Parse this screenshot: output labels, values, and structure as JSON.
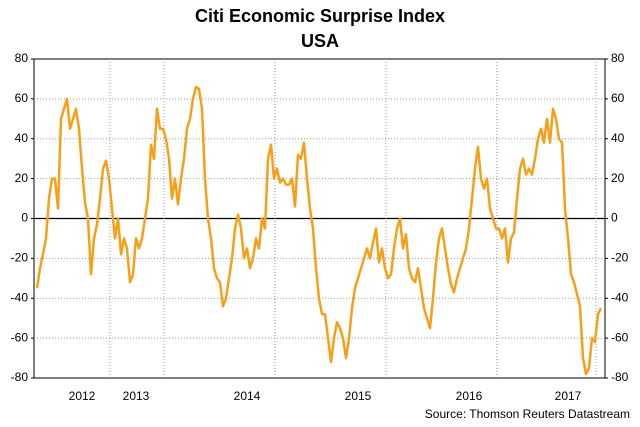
{
  "chart_data": {
    "type": "line",
    "title": "Citi Economic Surprise Index",
    "subtitle": "USA",
    "source": "Source: Thomson Reuters Datastream",
    "color": "#f6a01a",
    "grid": true,
    "ylim": [
      -80,
      80
    ],
    "yticks": [
      -80,
      -60,
      -40,
      -20,
      0,
      20,
      40,
      60,
      80
    ],
    "y2lim": [
      -80,
      80
    ],
    "y2ticks": [
      -80,
      -60,
      -40,
      -20,
      0,
      20,
      40,
      60,
      80
    ],
    "categories": [
      null,
      null,
      null,
      null,
      null,
      null,
      null,
      null,
      null,
      null,
      null,
      null,
      null,
      null,
      null,
      "2012",
      null,
      null,
      null,
      null,
      null,
      null,
      null,
      null,
      null,
      null,
      null,
      null,
      null,
      null,
      null,
      null,
      null,
      "2013",
      null,
      null,
      null,
      null,
      null,
      null,
      null,
      null,
      null,
      null,
      null,
      null,
      null,
      null,
      null,
      null,
      null,
      null,
      null,
      null,
      null,
      null,
      null,
      null,
      null,
      null,
      null,
      null,
      null,
      null,
      null,
      null,
      null,
      null,
      null,
      null,
      "2014",
      null,
      null,
      null,
      null,
      null,
      null,
      null,
      null,
      null,
      null,
      null,
      null,
      null,
      null,
      null,
      null,
      null,
      null,
      null,
      null,
      null,
      null,
      null,
      null,
      null,
      null,
      null,
      null,
      null,
      null,
      null,
      null,
      null,
      null,
      null,
      null,
      "2015",
      null,
      null,
      null,
      null,
      null,
      null,
      null,
      null,
      null,
      null,
      null,
      null,
      null,
      null,
      null,
      null,
      null,
      null,
      null,
      null,
      null,
      null,
      null,
      null,
      null,
      null,
      null,
      null,
      null,
      null,
      null,
      null,
      null,
      null,
      null,
      null,
      "2016",
      null,
      null,
      null,
      null,
      null,
      null,
      null,
      null,
      null,
      null,
      null,
      null,
      null,
      null,
      null,
      null,
      null,
      null,
      null,
      null,
      null,
      null,
      null,
      null,
      null,
      null,
      null,
      null,
      null,
      null,
      null,
      null,
      "2017",
      null,
      null,
      null,
      null,
      null,
      null,
      null,
      null,
      null,
      null,
      null
    ],
    "values": [
      -35,
      -25,
      -18,
      -10,
      10,
      20,
      20,
      5,
      50,
      55,
      60,
      45,
      50,
      55,
      45,
      25,
      8,
      0,
      -28,
      -10,
      -3,
      10,
      25,
      29,
      20,
      5,
      -10,
      0,
      -18,
      -10,
      -15,
      -32,
      -28,
      -10,
      -15,
      -10,
      0,
      10,
      37,
      30,
      55,
      45,
      45,
      40,
      30,
      10,
      20,
      7,
      20,
      30,
      45,
      50,
      60,
      66,
      65,
      55,
      20,
      0,
      -10,
      -25,
      -30,
      -32,
      -44,
      -40,
      -30,
      -20,
      -5,
      2,
      -5,
      -20,
      -15,
      -25,
      -20,
      -10,
      -15,
      0,
      -5,
      30,
      37,
      20,
      25,
      18,
      20,
      17,
      17,
      20,
      6,
      32,
      30,
      38,
      20,
      5,
      -5,
      -25,
      -40,
      -48,
      -48,
      -60,
      -72,
      -60,
      -52,
      -55,
      -60,
      -70,
      -60,
      -45,
      -35,
      -30,
      -25,
      -20,
      -15,
      -20,
      -12,
      -5,
      -22,
      -15,
      -25,
      -30,
      -28,
      -15,
      -5,
      0,
      -15,
      -8,
      -25,
      -30,
      -32,
      -25,
      -35,
      -45,
      -50,
      -55,
      -40,
      -22,
      -10,
      -5,
      -15,
      -25,
      -33,
      -37,
      -30,
      -25,
      -20,
      -15,
      -5,
      10,
      25,
      36,
      20,
      15,
      20,
      5,
      0,
      -5,
      -5,
      -10,
      -5,
      -22,
      -10,
      -7,
      10,
      25,
      30,
      22,
      25,
      22,
      30,
      40,
      45,
      38,
      50,
      38,
      55,
      50,
      40,
      38,
      5,
      -10,
      -28,
      -32,
      -38,
      -44,
      -70,
      -78,
      -75,
      -60,
      -62,
      -48,
      -45
    ]
  }
}
